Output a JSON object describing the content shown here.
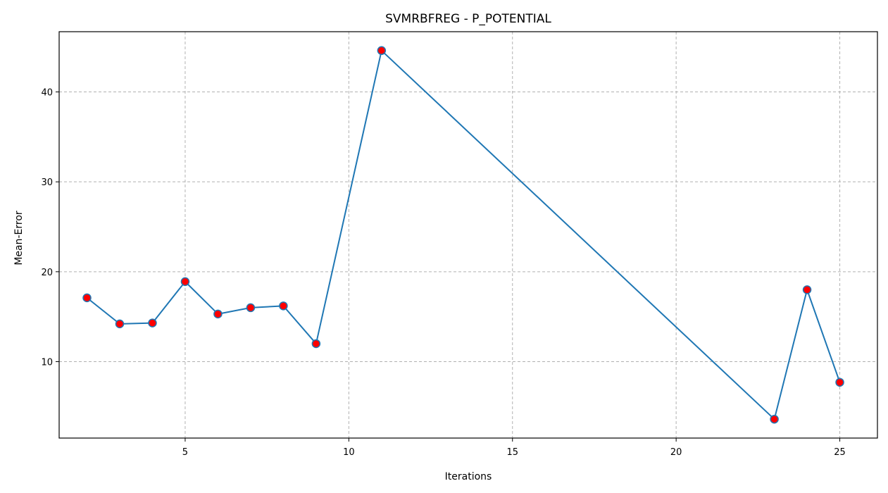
{
  "chart_data": {
    "type": "line",
    "title": "SVMRBFREG - P_POTENTIAL",
    "xlabel": "Iterations",
    "ylabel": "Mean-Error",
    "xlim": [
      1.15,
      26.15
    ],
    "ylim": [
      1.5,
      46.7
    ],
    "xticks": [
      5,
      10,
      15,
      20,
      25
    ],
    "yticks": [
      10,
      20,
      30,
      40
    ],
    "grid": true,
    "line_color": "#1f77b4",
    "marker_face_color": "#ff0000",
    "marker_edge_color": "#1f77b4",
    "grid_color": "#b0b0b0",
    "series": [
      {
        "x": [
          2,
          3,
          4,
          5,
          6,
          7,
          8,
          9,
          11,
          23,
          24,
          25
        ],
        "y": [
          17.1,
          14.2,
          14.3,
          18.9,
          15.3,
          16.0,
          16.2,
          12.0,
          44.6,
          3.6,
          18.0,
          7.7
        ]
      }
    ]
  }
}
